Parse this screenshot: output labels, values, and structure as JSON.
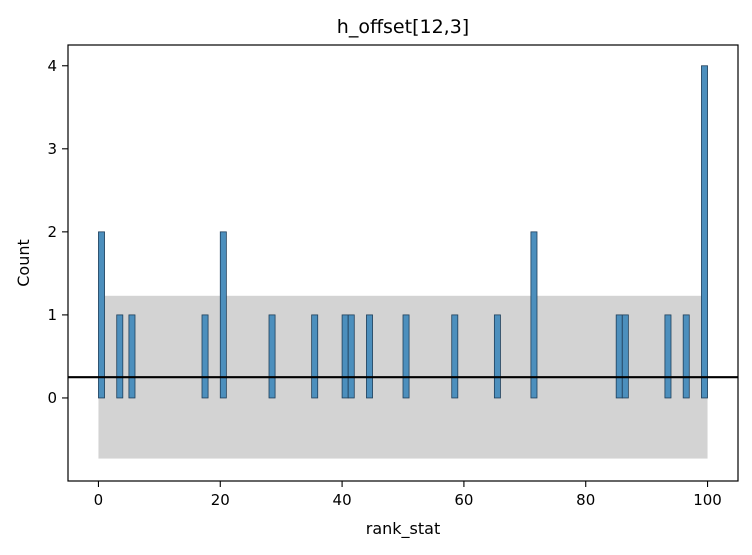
{
  "chart_data": {
    "type": "bar",
    "title": "h_offset[12,3]",
    "xlabel": "rank_stat",
    "ylabel": "Count",
    "xlim": [
      -5,
      105
    ],
    "ylim": [
      -1.0,
      4.25
    ],
    "xticks": [
      0,
      20,
      40,
      60,
      80,
      100
    ],
    "yticks": [
      0,
      1,
      2,
      3,
      4
    ],
    "xtick_labels": [
      "0",
      "20",
      "40",
      "60",
      "80",
      "100"
    ],
    "ytick_labels": [
      "0",
      "1",
      "2",
      "3",
      "4"
    ],
    "bin_width": 1,
    "bar_color": "#4c8fbd",
    "bar_edge_color": "#1f3f5a",
    "band_color": "#d3d3d3",
    "reference_line_color": "#000000",
    "reference_line_y": 0.25,
    "band": {
      "x": [
        0,
        100
      ],
      "y": [
        -0.73,
        1.23
      ]
    },
    "bins": [
      {
        "x": 0,
        "count": 2
      },
      {
        "x": 3,
        "count": 1
      },
      {
        "x": 5,
        "count": 1
      },
      {
        "x": 17,
        "count": 1
      },
      {
        "x": 20,
        "count": 2
      },
      {
        "x": 28,
        "count": 1
      },
      {
        "x": 35,
        "count": 1
      },
      {
        "x": 40,
        "count": 1
      },
      {
        "x": 41,
        "count": 1
      },
      {
        "x": 44,
        "count": 1
      },
      {
        "x": 50,
        "count": 1
      },
      {
        "x": 58,
        "count": 1
      },
      {
        "x": 65,
        "count": 1
      },
      {
        "x": 71,
        "count": 2
      },
      {
        "x": 85,
        "count": 1
      },
      {
        "x": 86,
        "count": 1
      },
      {
        "x": 93,
        "count": 1
      },
      {
        "x": 96,
        "count": 1
      },
      {
        "x": 99,
        "count": 4
      }
    ]
  }
}
